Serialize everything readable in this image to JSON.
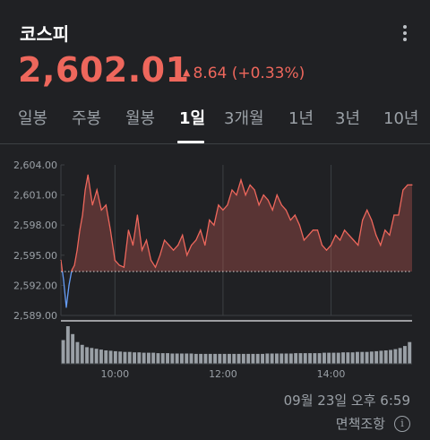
{
  "header": {
    "title": "코스피",
    "price": "2,602.01",
    "change": "8.64 (+0.33%)",
    "change_icon": "triangle-up-icon",
    "menu_icon": "more-vert-icon"
  },
  "tabs": [
    {
      "label": "일봉",
      "active": false
    },
    {
      "label": "주봉",
      "active": false
    },
    {
      "label": "월봉",
      "active": false
    },
    {
      "label": "1일",
      "active": true
    },
    {
      "label": "3개월",
      "active": false
    },
    {
      "label": "1년",
      "active": false
    },
    {
      "label": "3년",
      "active": false
    },
    {
      "label": "10년",
      "active": false
    }
  ],
  "chart_data": {
    "type": "line",
    "y_ticks": [
      "2,604.00",
      "2,601.00",
      "2,598.00",
      "2,595.00",
      "2,592.00",
      "2,589.00"
    ],
    "y_tick_values": [
      2604,
      2601,
      2598,
      2595,
      2592,
      2589
    ],
    "ylim": [
      2589,
      2604
    ],
    "x_ticks": [
      "10:00",
      "12:00",
      "14:00"
    ],
    "reference_value": 2593.37,
    "reference_style": "dotted",
    "x_range": [
      "09:00",
      "15:30"
    ],
    "series": [
      {
        "x": [
          "09:00",
          "09:03",
          "09:06",
          "09:09",
          "09:12",
          "09:15",
          "09:18",
          "09:21",
          "09:24",
          "09:27",
          "09:30",
          "09:35",
          "09:40",
          "09:45",
          "09:50",
          "09:55",
          "10:00",
          "10:05",
          "10:10",
          "10:15",
          "10:20",
          "10:25",
          "10:30",
          "10:35",
          "10:40",
          "10:45",
          "10:50",
          "10:55",
          "11:00",
          "11:05",
          "11:10",
          "11:15",
          "11:20",
          "11:25",
          "11:30",
          "11:35",
          "11:40",
          "11:45",
          "11:50",
          "11:55",
          "12:00",
          "12:05",
          "12:10",
          "12:15",
          "12:20",
          "12:25",
          "12:30",
          "12:35",
          "12:40",
          "12:45",
          "12:50",
          "12:55",
          "13:00",
          "13:05",
          "13:10",
          "13:15",
          "13:20",
          "13:25",
          "13:30",
          "13:35",
          "13:40",
          "13:45",
          "13:50",
          "13:55",
          "14:00",
          "14:05",
          "14:10",
          "14:15",
          "14:20",
          "14:25",
          "14:30",
          "14:35",
          "14:40",
          "14:45",
          "14:50",
          "14:55",
          "15:00",
          "15:05",
          "15:10",
          "15:15",
          "15:20",
          "15:25",
          "15:30"
        ],
        "values": [
          2594.5,
          2592.5,
          2589.8,
          2592.0,
          2593.5,
          2594.0,
          2595.5,
          2597.5,
          2599.0,
          2601.5,
          2603.0,
          2600.0,
          2601.5,
          2599.5,
          2600.0,
          2597.5,
          2594.5,
          2594.0,
          2593.8,
          2597.5,
          2596.0,
          2599.0,
          2595.5,
          2596.5,
          2594.5,
          2593.8,
          2595.0,
          2596.5,
          2596.0,
          2595.5,
          2596.0,
          2597.0,
          2595.0,
          2596.0,
          2596.5,
          2597.5,
          2596.0,
          2598.5,
          2598.0,
          2600.0,
          2599.5,
          2600.0,
          2601.5,
          2601.0,
          2602.5,
          2601.0,
          2602.0,
          2601.5,
          2600.0,
          2601.0,
          2600.5,
          2599.5,
          2601.0,
          2600.0,
          2599.5,
          2598.5,
          2599.0,
          2598.0,
          2596.5,
          2597.0,
          2597.5,
          2597.5,
          2596.0,
          2595.5,
          2596.0,
          2597.0,
          2596.5,
          2597.5,
          2597.0,
          2596.5,
          2596.0,
          2598.5,
          2599.5,
          2598.5,
          2597.0,
          2596.0,
          2597.5,
          2597.0,
          2599.0,
          2599.0,
          2601.5,
          2602.0,
          2602.01
        ]
      }
    ],
    "volume": [
      60,
      95,
      75,
      55,
      48,
      42,
      40,
      38,
      36,
      34,
      33,
      32,
      31,
      30,
      30,
      29,
      29,
      28,
      28,
      28,
      27,
      27,
      27,
      26,
      26,
      26,
      26,
      26,
      25,
      25,
      25,
      25,
      25,
      25,
      25,
      25,
      25,
      25,
      25,
      25,
      25,
      25,
      25,
      26,
      26,
      26,
      26,
      26,
      26,
      27,
      27,
      27,
      27,
      27,
      27,
      28,
      28,
      28,
      28,
      29,
      29,
      29,
      30,
      30,
      30,
      31,
      32,
      33,
      34,
      35,
      37,
      40,
      45,
      55
    ],
    "colors": {
      "up": "#ee675c",
      "down": "#669df6",
      "grid": "#3c4043",
      "volume": "#9aa0a6"
    }
  },
  "footer": {
    "timestamp": "09월 23일 오후 6:59",
    "disclaimer": "면책조항",
    "info_icon": "info-icon"
  }
}
